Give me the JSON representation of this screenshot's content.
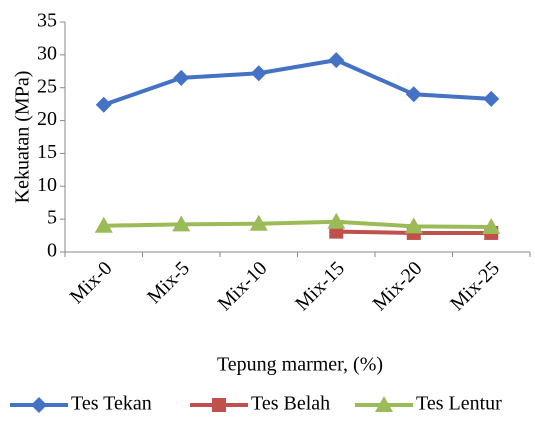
{
  "chart_data": {
    "type": "line",
    "x_label": "Tepung marmer, (%)",
    "y_label": "Kekuatan (MPa)",
    "categories": [
      "Mix-0",
      "Mix-5",
      "Mix-10",
      "Mix-15",
      "Mix-20",
      "Mix-25"
    ],
    "series": [
      {
        "name": "Tes Tekan",
        "color": "#4472c4",
        "marker": "diamond",
        "values": [
          22.4,
          26.5,
          27.2,
          29.2,
          24.0,
          23.3
        ]
      },
      {
        "name": "Tes Belah",
        "color": "#c0504d",
        "marker": "square",
        "values": [
          null,
          null,
          null,
          3.1,
          2.9,
          2.9
        ]
      },
      {
        "name": "Tes Lentur",
        "color": "#9bbb59",
        "marker": "triangle",
        "values": [
          4.0,
          4.2,
          4.3,
          4.6,
          3.9,
          3.8
        ]
      }
    ],
    "ylim": [
      0,
      35
    ],
    "yticks": [
      0,
      5,
      10,
      15,
      20,
      25,
      30,
      35
    ],
    "grid": false,
    "legend": "bottom"
  }
}
